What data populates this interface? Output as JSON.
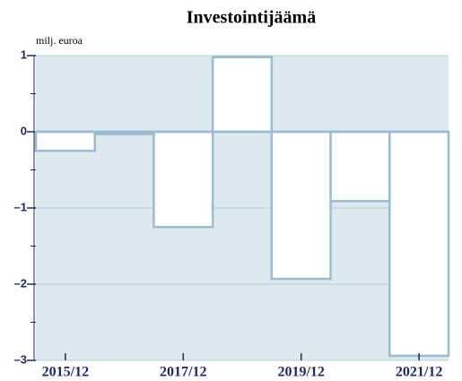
{
  "chart_data": {
    "type": "bar",
    "title": "Investointijäämä",
    "y_label": "milj. euroa",
    "categories": [
      "2015/12",
      null,
      "2017/12",
      null,
      "2019/12",
      null,
      "2021/12"
    ],
    "values": [
      -0.25,
      -0.03,
      -1.25,
      0.98,
      -1.93,
      -0.91,
      -2.94
    ],
    "color": "#9cbad0",
    "background": "#dde9ec",
    "ylim": [
      -3,
      1
    ],
    "yticks": [
      {
        "value": 1,
        "label": "1"
      },
      0,
      {
        "value": -1,
        "label": "–1"
      },
      {
        "value": -2,
        "label": "–2"
      },
      {
        "value": -3,
        "label": "–3"
      }
    ],
    "minor_yticks": [
      0.5,
      -0.5,
      -1.5,
      -2.5
    ],
    "grid": true
  }
}
